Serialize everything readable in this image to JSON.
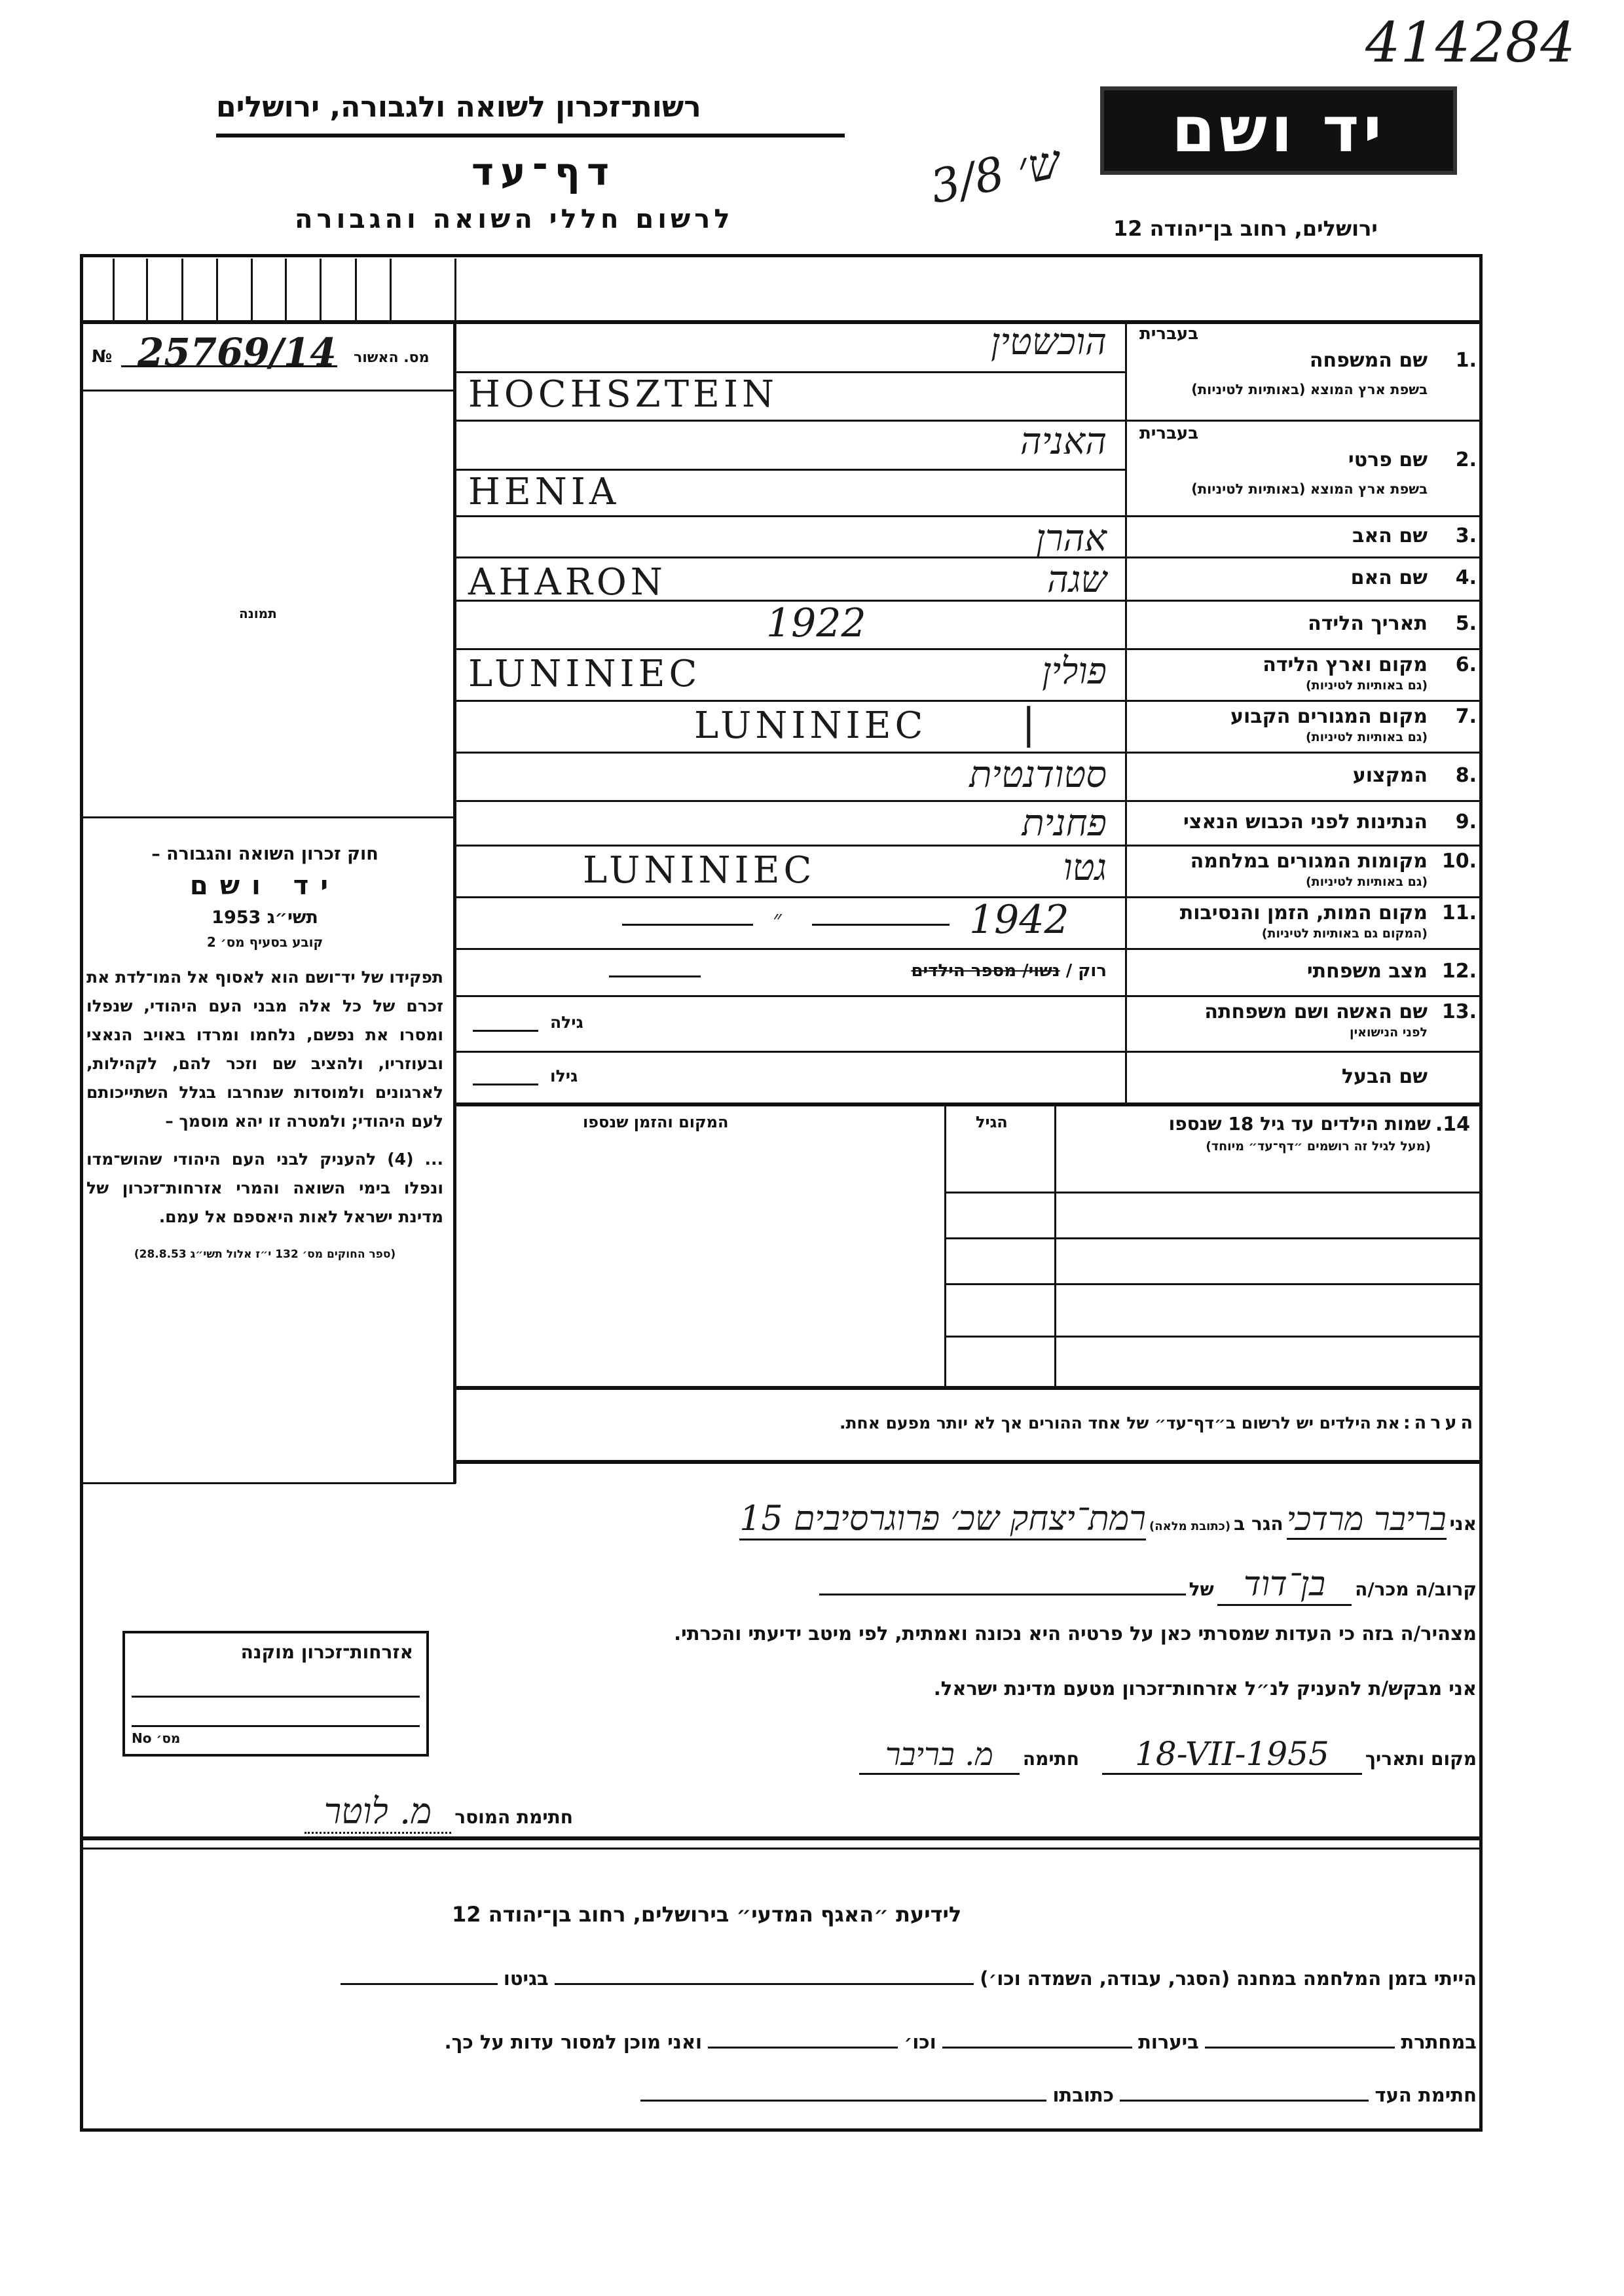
{
  "header": {
    "org_title": "רשות־זכרון לשואה ולגבורה, ירושלים",
    "form_title": "דף־עד",
    "form_subtitle": "לרשום חללי השואה והגבורה",
    "logo_text": "יד ושם",
    "address": "ירושלים, רחוב בן־יהודה 12",
    "archive_number": "414284",
    "handwritten_note": "ש׳ 3/8"
  },
  "left": {
    "approval_prefix": "№",
    "approval_number": "25769/14",
    "approval_label": "מס. האשור",
    "photo_label": "תמונה",
    "law_title": "חוק זכרון השואה והגבורה –",
    "law_name": "יד ושם",
    "law_year": "תשי״ג 1953",
    "law_clause": "קובע בסעיף מס׳ 2",
    "law_text": "תפקידו של יד־ושם הוא לאסוף אל המו־לדת את זכרם של כל אלה מבני העם היהודי, שנפלו ומסרו את נפשם, נלחמו ומרדו באויב הנאצי ובעוזריו, ולהציב שם וזכר להם, לקהילות, לארגונים ולמוסדות שנחרבו בגלל השתייכותם לעם היהודי; ולמטרה זו יהא מוסמך –",
    "law_text2": "... (4) להעניק לבני העם היהודי שהוש־מדו ונפלו בימי השואה והמרי אזרחות־זכרון של מדינת ישראל לאות היאספם אל עמם.",
    "law_source": "(ספר החוקים מס׳ 132 י״ז אלול תשי״ג 28.8.53)"
  },
  "fields": [
    {
      "num": "1.",
      "label": "שם המשפחה",
      "hebrew_hint": "בעברית",
      "sublabel": "בשפת ארץ המוצא (באותיות לטיניות)",
      "value_he": "הוכשטין",
      "value_lat": "HOCHSZTEIN"
    },
    {
      "num": "2.",
      "label": "שם פרטי",
      "hebrew_hint": "בעברית",
      "sublabel": "בשפת ארץ המוצא (באותיות לטיניות)",
      "value_he": "האניה",
      "value_lat": "HENIA"
    },
    {
      "num": "3.",
      "label": "שם האב",
      "value_he": "אהרן"
    },
    {
      "num": "4.",
      "label": "שם האם",
      "value_he": "שגה",
      "value_lat": "AHARON"
    },
    {
      "num": "5.",
      "label": "תאריך הלידה",
      "value": "1922"
    },
    {
      "num": "6.",
      "label": "מקום וארץ הלידה",
      "sublabel": "(גם באותיות לטיניות)",
      "value_he": "פולין",
      "value_lat": "LUNINIEC"
    },
    {
      "num": "7.",
      "label": "מקום המגורים הקבוע",
      "sublabel": "(גם באותיות לטיניות)",
      "value_lat": "LUNINIEC"
    },
    {
      "num": "8.",
      "label": "המקצוע",
      "value_he": "סטודנטית"
    },
    {
      "num": "9.",
      "label": "הנתינות לפני הכבוש הנאצי",
      "value_he": "פחנית"
    },
    {
      "num": "10.",
      "label": "מקומות המגורים במלחמה",
      "sublabel": "(גם באותיות לטיניות)",
      "value_he": "גטו",
      "value_lat": "LUNINIEC"
    },
    {
      "num": "11.",
      "label": "מקום המות, הזמן והנסיבות",
      "sublabel": "(המקום גם באותיות לטיניות)",
      "value_mid": "״",
      "value": "1942"
    },
    {
      "num": "12.",
      "label": "מצב משפחתי",
      "value_printed": "רוק / ",
      "value_struck": "נשוי/ מספר הילדים"
    },
    {
      "num": "13.",
      "label": "שם האשה ושם משפחתה",
      "sublabel": "לפני הנישואין",
      "age_label": "גילה"
    },
    {
      "num": "",
      "label": "שם הבעל",
      "age_label": "גילו"
    }
  ],
  "children": {
    "num": "14.",
    "label": "שמות הילדים עד גיל 18 שנספו",
    "sublabel": "(מעל לגיל זה רושמים ״דף־עד״ מיוחד)",
    "col_age": "הגיל",
    "col_place": "המקום והזמן שנספו"
  },
  "note": {
    "label": "הערה:",
    "text": "את הילדים יש לרשום ב״דף־עד״ של אחד ההורים אך לא יותר מפעם אחת."
  },
  "declaration": {
    "i_label": "אני",
    "name_value": "בריבר מרדכי",
    "lives_label": "הגר ב",
    "address_hint": "(כתובת מלאה)",
    "address_value": "רמת־יצחק שכ׳ פרוגרסיבים 15",
    "relation_label": "קרוב/ה מכר/ה",
    "relation_value": "בן־דוד",
    "of_label": "של",
    "statement": "מצהיר/ה בזה כי העדות שמסרתי כאן על פרטיה היא נכונה ואמתית, לפי מיטב ידיעתי והכרתי.",
    "request": "אני מבקש/ת להעניק לנ״ל אזרחות־זכרון מטעם מדינת ישראל.",
    "place_date_label": "מקום ותאריך",
    "date_value": "18-VII-1955",
    "signature_label": "חתימה",
    "signature_value": "מ. בריבר",
    "receiver_label": "חתימת המוסר",
    "receiver_value": "מ. לוטר"
  },
  "citizenship_box": {
    "title": "אזרחות־זכרון מוקנה",
    "no_label": "מס׳ No"
  },
  "footer": {
    "title": "לידיעת ״האגף המדעי״ בירושלים, רחוב בן־יהודה 12",
    "line1_a": "הייתי בזמן המלחמה במחנה (הסגר, עבודה, השמדה וכו׳)",
    "line1_b": "בגיטו",
    "line2_a": "במחתרת",
    "line2_b": "ביערות",
    "line2_c": "וכו׳",
    "line2_d": "ואני מוכן למסור עדות על כך.",
    "line3_a": "חתימת העד",
    "line3_b": "כתובתו"
  }
}
